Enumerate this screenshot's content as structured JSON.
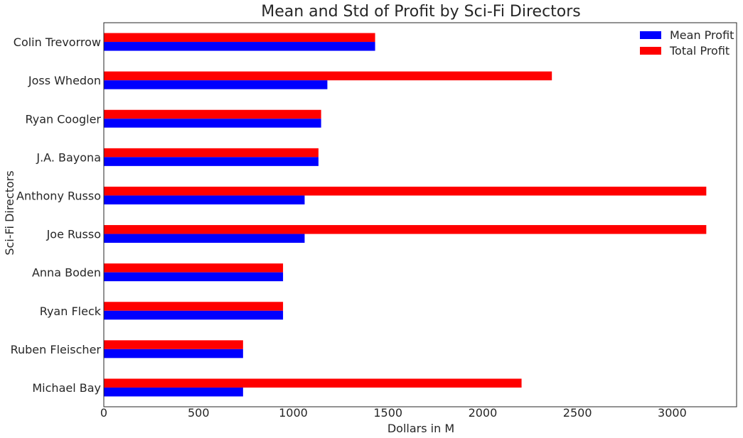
{
  "chart_data": {
    "type": "bar",
    "orientation": "horizontal",
    "title": "Mean and Std of Profit by Sci-Fi Directors",
    "xlabel": "Dollars in M",
    "ylabel": "Sci-Fi Directors",
    "xlim": [
      0,
      3340
    ],
    "xticks": [
      0,
      500,
      1000,
      1500,
      2000,
      2500,
      3000
    ],
    "xtick_labels": [
      "0",
      "500",
      "1000",
      "1500",
      "2000",
      "2500",
      "3000"
    ],
    "categories": [
      "Colin Trevorrow",
      "Joss Whedon",
      "Ryan Coogler",
      "J.A. Bayona",
      "Anthony Russo",
      "Joe Russo",
      "Anna Boden",
      "Ryan Fleck",
      "Ruben Fleischer",
      "Michael Bay"
    ],
    "series": [
      {
        "name": "Mean Profit",
        "color": "#0000ff",
        "values": [
          1432,
          1180,
          1147,
          1133,
          1060,
          1060,
          946,
          946,
          735,
          735
        ]
      },
      {
        "name": "Total Profit",
        "color": "#ff0000",
        "values": [
          1432,
          2365,
          1147,
          1133,
          3180,
          3180,
          946,
          946,
          735,
          2205
        ]
      }
    ],
    "grid": false,
    "legend_position": "top-right"
  }
}
